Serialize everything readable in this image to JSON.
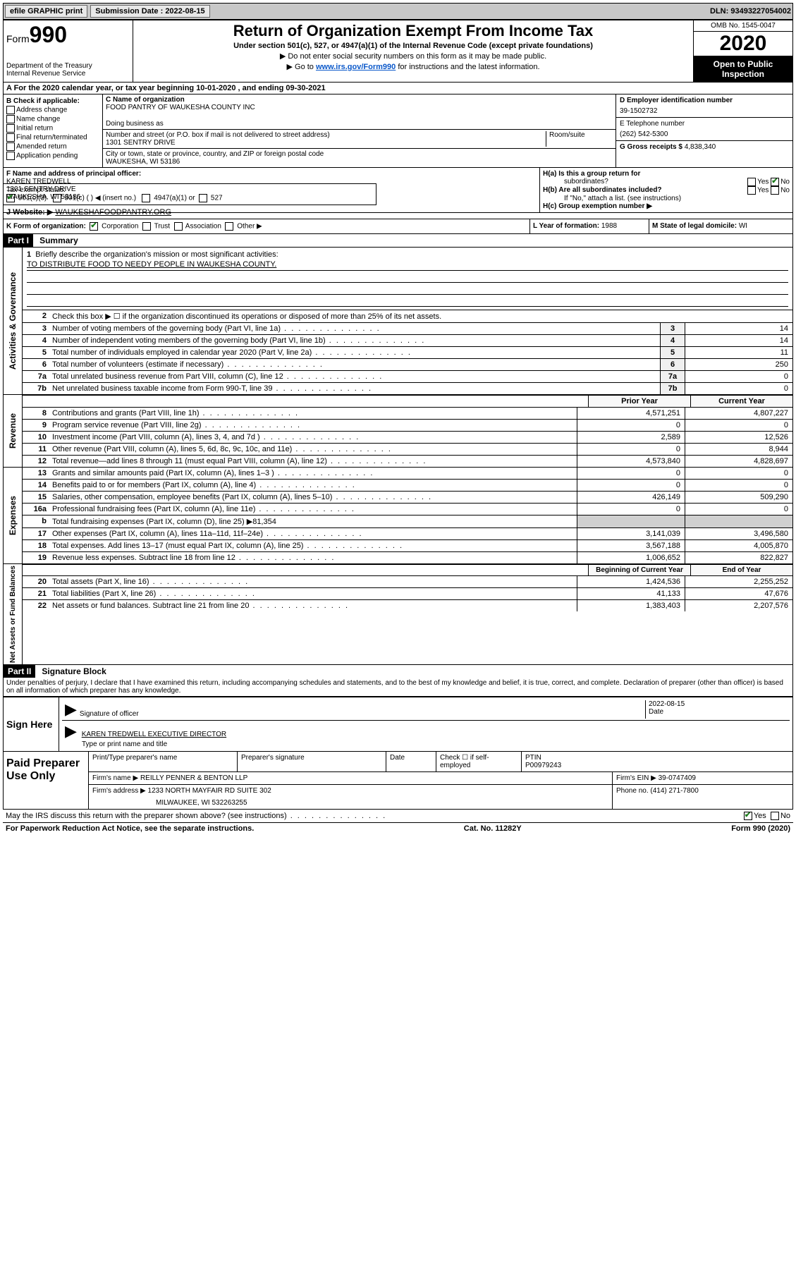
{
  "topbar": {
    "efile_label": "efile GRAPHIC print",
    "submission_label": "Submission Date : 2022-08-15",
    "dln_label": "DLN: 93493227054002"
  },
  "header": {
    "form_word": "Form",
    "form_num": "990",
    "dept": "Department of the Treasury",
    "irs": "Internal Revenue Service",
    "title": "Return of Organization Exempt From Income Tax",
    "subtitle": "Under section 501(c), 527, or 4947(a)(1) of the Internal Revenue Code (except private foundations)",
    "note1": "▶ Do not enter social security numbers on this form as it may be made public.",
    "note2_pre": "▶ Go to ",
    "note2_link": "www.irs.gov/Form990",
    "note2_post": " for instructions and the latest information.",
    "omb": "OMB No. 1545-0047",
    "year": "2020",
    "open": "Open to Public Inspection"
  },
  "row_a": "A   For the 2020 calendar year, or tax year beginning 10-01-2020    , and ending 09-30-2021",
  "col_b": {
    "head": "B Check if applicable:",
    "addr": "Address change",
    "name": "Name change",
    "initial": "Initial return",
    "final": "Final return/terminated",
    "amended": "Amended return",
    "app": "Application pending"
  },
  "col_c": {
    "c_label": "C Name of organization",
    "org_name": "FOOD PANTRY OF WAUKESHA COUNTY INC",
    "dba_label": "Doing business as",
    "addr_label": "Number and street (or P.O. box if mail is not delivered to street address)",
    "addr": "1301 SENTRY DRIVE",
    "room_label": "Room/suite",
    "city_label": "City or town, state or province, country, and ZIP or foreign postal code",
    "city": "WAUKESHA, WI  53186"
  },
  "col_d": {
    "d_label": "D Employer identification number",
    "ein": "39-1502732",
    "e_label": "E Telephone number",
    "phone": "(262) 542-5300",
    "g_label": "G Gross receipts $ ",
    "gross": "4,838,340"
  },
  "f_block": {
    "f_label": "F Name and address of principal officer:",
    "name": "KAREN TREDWELL",
    "addr1": "1301 SENTRY DRIVE",
    "addr2": "WAUKESHA, WI  53186"
  },
  "h_block": {
    "ha": "H(a)  Is this a group return for",
    "ha2": "subordinates?",
    "hb": "H(b)  Are all subordinates included?",
    "hb_note": "If \"No,\" attach a list. (see instructions)",
    "hc": "H(c)  Group exemption number ▶",
    "yes": "Yes",
    "no": "No"
  },
  "tax_line": {
    "label": "Tax-exempt status:",
    "c3": "501(c)(3)",
    "c_other": "501(c) (   ) ◀ (insert no.)",
    "a1": "4947(a)(1) or",
    "s527": "527"
  },
  "j_line": {
    "label": "J   Website: ▶ ",
    "url": "WAUKESHAFOODPANTRY.ORG"
  },
  "k_line": {
    "k_label": "K Form of organization:",
    "corp": "Corporation",
    "trust": "Trust",
    "assoc": "Association",
    "other": "Other ▶",
    "l_label": "L Year of formation: ",
    "l_val": "1988",
    "m_label": "M State of legal domicile: ",
    "m_val": "WI"
  },
  "part1": {
    "header": "Part I",
    "title": "Summary",
    "gov_label": "Activities & Governance",
    "rev_label": "Revenue",
    "exp_label": "Expenses",
    "net_label": "Net Assets or Fund Balances",
    "q1": "Briefly describe the organization's mission or most significant activities:",
    "mission": "TO DISTRIBUTE FOOD TO NEEDY PEOPLE IN WAUKESHA COUNTY.",
    "q2": "Check this box ▶ ☐  if the organization discontinued its operations or disposed of more than 25% of its net assets.",
    "q3": "Number of voting members of the governing body (Part VI, line 1a)",
    "v3": "14",
    "q4": "Number of independent voting members of the governing body (Part VI, line 1b)",
    "v4": "14",
    "q5": "Total number of individuals employed in calendar year 2020 (Part V, line 2a)",
    "v5": "11",
    "q6": "Total number of volunteers (estimate if necessary)",
    "v6": "250",
    "q7a": "Total unrelated business revenue from Part VIII, column (C), line 12",
    "v7a": "0",
    "q7b": "Net unrelated business taxable income from Form 990-T, line 39",
    "v7b": "0",
    "prior": "Prior Year",
    "current": "Current Year",
    "rows_rev": [
      {
        "n": "8",
        "t": "Contributions and grants (Part VIII, line 1h)",
        "p": "4,571,251",
        "c": "4,807,227"
      },
      {
        "n": "9",
        "t": "Program service revenue (Part VIII, line 2g)",
        "p": "0",
        "c": "0"
      },
      {
        "n": "10",
        "t": "Investment income (Part VIII, column (A), lines 3, 4, and 7d )",
        "p": "2,589",
        "c": "12,526"
      },
      {
        "n": "11",
        "t": "Other revenue (Part VIII, column (A), lines 5, 6d, 8c, 9c, 10c, and 11e)",
        "p": "0",
        "c": "8,944"
      },
      {
        "n": "12",
        "t": "Total revenue—add lines 8 through 11 (must equal Part VIII, column (A), line 12)",
        "p": "4,573,840",
        "c": "4,828,697"
      }
    ],
    "rows_exp": [
      {
        "n": "13",
        "t": "Grants and similar amounts paid (Part IX, column (A), lines 1–3 )",
        "p": "0",
        "c": "0"
      },
      {
        "n": "14",
        "t": "Benefits paid to or for members (Part IX, column (A), line 4)",
        "p": "0",
        "c": "0"
      },
      {
        "n": "15",
        "t": "Salaries, other compensation, employee benefits (Part IX, column (A), lines 5–10)",
        "p": "426,149",
        "c": "509,290"
      },
      {
        "n": "16a",
        "t": "Professional fundraising fees (Part IX, column (A), line 11e)",
        "p": "0",
        "c": "0"
      },
      {
        "n": "b",
        "t": "Total fundraising expenses (Part IX, column (D), line 25) ▶81,354",
        "p": "",
        "c": ""
      },
      {
        "n": "17",
        "t": "Other expenses (Part IX, column (A), lines 11a–11d, 11f–24e)",
        "p": "3,141,039",
        "c": "3,496,580"
      },
      {
        "n": "18",
        "t": "Total expenses. Add lines 13–17 (must equal Part IX, column (A), line 25)",
        "p": "3,567,188",
        "c": "4,005,870"
      },
      {
        "n": "19",
        "t": "Revenue less expenses. Subtract line 18 from line 12",
        "p": "1,006,652",
        "c": "822,827"
      }
    ],
    "begin": "Beginning of Current Year",
    "end": "End of Year",
    "rows_net": [
      {
        "n": "20",
        "t": "Total assets (Part X, line 16)",
        "p": "1,424,536",
        "c": "2,255,252"
      },
      {
        "n": "21",
        "t": "Total liabilities (Part X, line 26)",
        "p": "41,133",
        "c": "47,676"
      },
      {
        "n": "22",
        "t": "Net assets or fund balances. Subtract line 21 from line 20",
        "p": "1,383,403",
        "c": "2,207,576"
      }
    ]
  },
  "part2": {
    "header": "Part II",
    "title": "Signature Block",
    "penalty": "Under penalties of perjury, I declare that I have examined this return, including accompanying schedules and statements, and to the best of my knowledge and belief, it is true, correct, and complete. Declaration of preparer (other than officer) is based on all information of which preparer has any knowledge."
  },
  "sign": {
    "label": "Sign Here",
    "sig_of": "Signature of officer",
    "date": "2022-08-15",
    "date_label": "Date",
    "name": "KAREN TREDWELL  EXECUTIVE DIRECTOR",
    "type_label": "Type or print name and title"
  },
  "paid": {
    "label": "Paid Preparer Use Only",
    "print_label": "Print/Type preparer's name",
    "sig_label": "Preparer's signature",
    "date_label": "Date",
    "check_label": "Check ☐ if self-employed",
    "ptin_label": "PTIN",
    "ptin": "P00979243",
    "firm_name_label": "Firm's name    ▶",
    "firm_name": "REILLY PENNER & BENTON LLP",
    "firm_ein_label": "Firm's EIN ▶",
    "firm_ein": "39-0747409",
    "firm_addr_label": "Firm's address ▶",
    "firm_addr1": "1233 NORTH MAYFAIR RD SUITE 302",
    "firm_addr2": "MILWAUKEE, WI  532263255",
    "phone_label": "Phone no. ",
    "phone": "(414) 271-7800"
  },
  "bottom": {
    "discuss": "May the IRS discuss this return with the preparer shown above? (see instructions)",
    "yes": "Yes",
    "no": "No"
  },
  "footer": {
    "left": "For Paperwork Reduction Act Notice, see the separate instructions.",
    "mid": "Cat. No. 11282Y",
    "right_form": "Form ",
    "right_num": "990",
    "right_year": " (2020)"
  }
}
